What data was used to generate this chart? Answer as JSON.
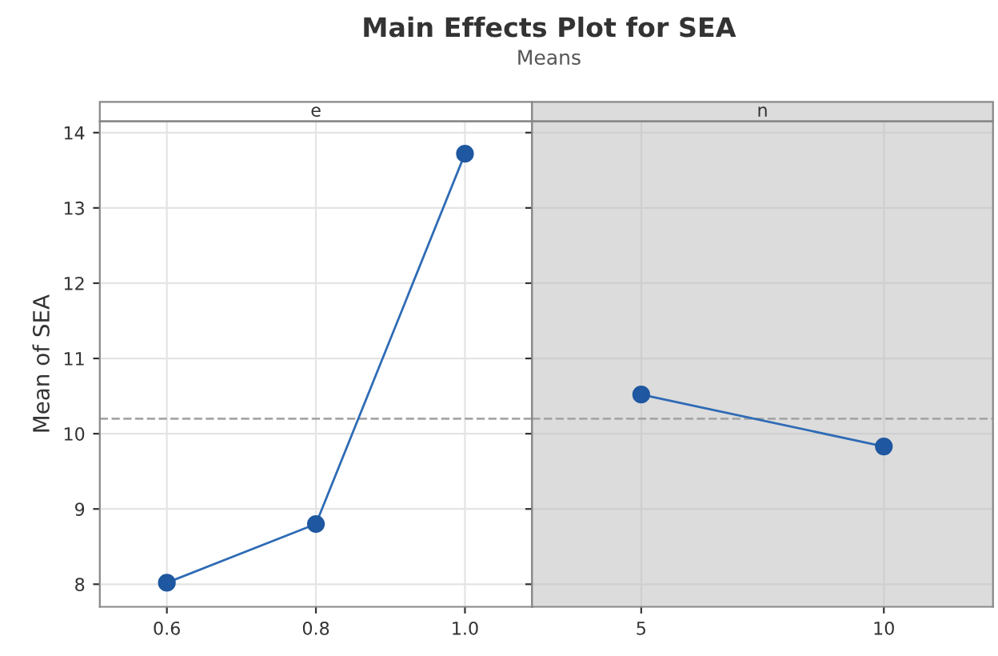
{
  "chart_data": [
    {
      "type": "line",
      "title": "Main Effects Plot for SEA",
      "subtitle": "Means",
      "xlabel": "e",
      "ylabel": "Mean of SEA",
      "categories": [
        "0.6",
        "0.8",
        "1.0"
      ],
      "series": [
        {
          "color": "#2f6bb5",
          "values": [
            8.02,
            8.8,
            13.72
          ]
        }
      ],
      "ylim": [
        7.7,
        14.15
      ],
      "yticks": [
        8,
        9,
        10,
        11,
        12,
        13,
        14
      ],
      "ref_lines": [
        {
          "axis": "y",
          "value": 10.2,
          "color": "#a6a6a6",
          "line_style": "dashed"
        }
      ],
      "grid": true,
      "marker": "circle"
    },
    {
      "type": "line",
      "xlabel": "n",
      "categories": [
        "5",
        "10"
      ],
      "series": [
        {
          "color": "#2f6bb5",
          "values": [
            10.52,
            9.83
          ]
        }
      ],
      "ylim": [
        7.7,
        14.15
      ],
      "yticks": [
        8,
        9,
        10,
        11,
        12,
        13,
        14
      ],
      "tick_labels": "x",
      "ref_lines": [
        {
          "axis": "y",
          "value": 10.2,
          "color": "#a6a6a6",
          "line_style": "dashed"
        }
      ],
      "grid": true,
      "marker": "circle"
    }
  ]
}
